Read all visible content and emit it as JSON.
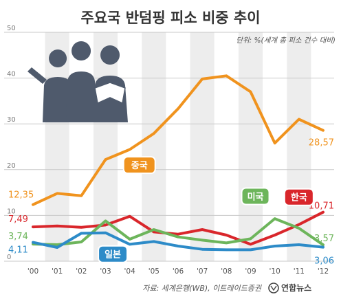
{
  "chart_data": {
    "type": "line",
    "title": "주요국 반덤핑 피소 비중 추이",
    "unit": "단위: %(세계 총 피소 건수 대비)",
    "categories": [
      "'00",
      "'01",
      "'02",
      "'03",
      "'04",
      "'05",
      "'06",
      "'07",
      "'08",
      "'09",
      "'10",
      "'11",
      "'12"
    ],
    "ylim": [
      0,
      50
    ],
    "yticks": [
      0,
      10,
      20,
      30,
      40,
      50
    ],
    "yticklabels": [
      "0",
      "10",
      "20",
      "30",
      "40",
      "50"
    ],
    "grid": true,
    "series": [
      {
        "name": "중국",
        "color": "#f0931e",
        "values": [
          12.35,
          14.8,
          14.3,
          22.2,
          24.4,
          27.9,
          33.3,
          39.8,
          40.5,
          37.0,
          25.8,
          31.0,
          28.57
        ],
        "start_label": "12,35",
        "end_label": "28,57"
      },
      {
        "name": "한국",
        "color": "#d9262b",
        "values": [
          7.49,
          7.7,
          7.4,
          7.9,
          9.8,
          6.4,
          5.9,
          6.9,
          5.7,
          3.7,
          5.7,
          8.0,
          10.71
        ],
        "start_label": "7,49",
        "end_label": "10,71"
      },
      {
        "name": "미국",
        "color": "#6db55b",
        "values": [
          3.74,
          3.6,
          4.2,
          8.8,
          4.8,
          6.9,
          5.3,
          4.6,
          4.0,
          4.9,
          9.3,
          7.2,
          3.57
        ],
        "start_label": "3,74",
        "end_label": "3,57"
      },
      {
        "name": "일본",
        "color": "#2d8bc8",
        "values": [
          4.11,
          3.0,
          6.1,
          6.2,
          3.7,
          4.3,
          3.3,
          2.6,
          2.5,
          2.5,
          3.3,
          3.6,
          3.06
        ],
        "start_label": "4,11",
        "end_label": "3,06"
      }
    ]
  },
  "source": "자료: 세계은행(WB), 이트레이드증권",
  "brand": "연합뉴스"
}
